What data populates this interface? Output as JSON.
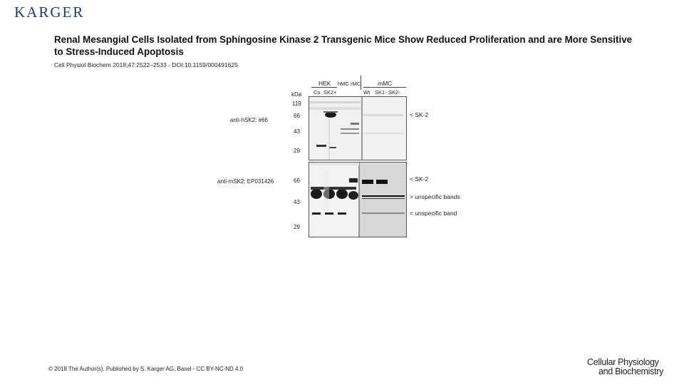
{
  "publisher": {
    "logo_text": "KARGER"
  },
  "slide": {
    "title": "Renal Mesangial Cells Isolated from Sphingosine Kinase 2 Transgenic Mice Show Reduced Proliferation and are More Sensitive to Stress-Induced Apoptosis",
    "citation": "Cell Physiol Biochem 2018;47:2522–2533 · DOI:10.1159/000491625",
    "footer": "© 2018 The Author(s). Published by S. Karger AG, Basel - CC BY-NC-ND 4.0"
  },
  "journal": {
    "line1": "Cellular Physiology",
    "line2": "and Biochemistry"
  },
  "figure": {
    "group_labels": {
      "hek": "HEK",
      "hmc": "hMC",
      "rmc": "rMC",
      "mmc": "mMC"
    },
    "lane_labels": {
      "co": "Co",
      "sk2plus": "SK2+",
      "wt": "Wt",
      "sk1minus": "SK1-",
      "sk2minus": "SK2-"
    },
    "kda_label": "kDa",
    "top_panel": {
      "antibody": "anti-hSK2: #66",
      "markers": [
        "119",
        "66",
        "43",
        "29"
      ],
      "annotation": "< SK-2"
    },
    "bottom_panel": {
      "antibody": "anti-mSK2: EP031426",
      "markers": [
        "66",
        "43",
        "29"
      ],
      "annotations": [
        "< SK-2",
        "> unspecific bands",
        "< unspecific band"
      ]
    }
  }
}
